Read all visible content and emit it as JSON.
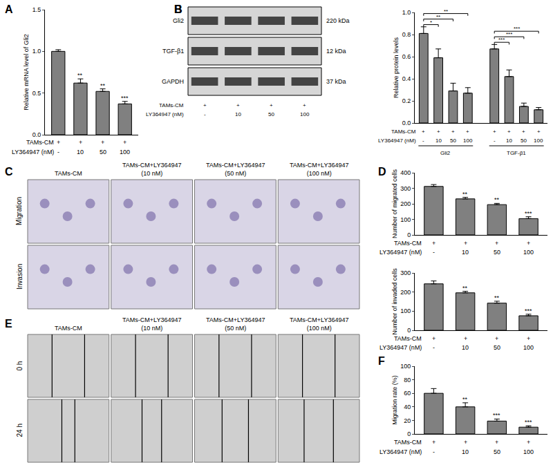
{
  "chart_data": [
    {
      "panel": "A",
      "type": "bar",
      "y_label": "Relative mRNA level of Gli2",
      "color": "#808080",
      "values": [
        1.0,
        0.62,
        0.52,
        0.37
      ],
      "errors": [
        0.02,
        0.05,
        0.03,
        0.03
      ],
      "significance": [
        null,
        "**",
        "**",
        "***"
      ],
      "conditions": [
        {
          "label": "TAMs-CM",
          "values": [
            "+",
            "+",
            "+",
            "+"
          ]
        },
        {
          "label": "LY364947 (nM)",
          "values": [
            "-",
            "10",
            "50",
            "100"
          ]
        }
      ],
      "ylim": [
        0,
        1.5
      ],
      "yticks": [
        {
          "value": 0,
          "label": "0.0"
        },
        0.5,
        {
          "value": 1,
          "label": "1.0"
        },
        1.5
      ]
    },
    {
      "panel": "B",
      "type": "bar",
      "y_label": "Relative protein levels",
      "color": "#808080",
      "groups": [
        {
          "name": "Gli2",
          "values": [
            0.81,
            0.59,
            0.29,
            0.27
          ],
          "errors": [
            0.06,
            0.08,
            0.07,
            0.05
          ],
          "significance": [
            null,
            "*",
            "**",
            "**"
          ]
        },
        {
          "name": "TGF-β1",
          "values": [
            0.67,
            0.42,
            0.15,
            0.12
          ],
          "errors": [
            0.04,
            0.06,
            0.03,
            0.02
          ],
          "significance": [
            null,
            "***",
            "***",
            "***"
          ]
        }
      ],
      "conditions": [
        {
          "label": "TAMs-CM",
          "values": [
            "+",
            "+",
            "+",
            "+"
          ]
        },
        {
          "label": "LY364947 (nM)",
          "values": [
            "-",
            "10",
            "50",
            "100"
          ]
        }
      ],
      "ylim": [
        0,
        1.0
      ],
      "yticks": [
        {
          "value": 0,
          "label": "0.0"
        },
        0.2,
        0.4,
        0.6,
        0.8,
        {
          "value": 1,
          "label": "1.0"
        }
      ]
    },
    {
      "panel": "D",
      "type": "bar",
      "y_label": "Number of migrated cells",
      "color": "#808080",
      "values": [
        312,
        232,
        195,
        105
      ],
      "errors": [
        12,
        10,
        8,
        12
      ],
      "significance": [
        null,
        "**",
        "**",
        "***"
      ],
      "conditions": [
        {
          "label": "TAMs-CM",
          "values": [
            "+",
            "+",
            "+",
            "+"
          ]
        },
        {
          "label": "LY364947 (nM)",
          "values": [
            "-",
            "10",
            "50",
            "100"
          ]
        }
      ],
      "ylim": [
        0,
        400
      ],
      "yticks": [
        0,
        100,
        200,
        300,
        400
      ]
    },
    {
      "type": "bar",
      "y_label": "Number of invaded cells",
      "color": "#808080",
      "values": [
        243,
        196,
        142,
        76
      ],
      "errors": [
        15,
        8,
        10,
        8
      ],
      "significance": [
        null,
        "**",
        "**",
        "***"
      ],
      "conditions": [
        {
          "label": "TAMs-CM",
          "values": [
            "+",
            "+",
            "+",
            "+"
          ]
        },
        {
          "label": "LY364947 (nM)",
          "values": [
            "-",
            "10",
            "50",
            "100"
          ]
        }
      ],
      "ylim": [
        0,
        300
      ],
      "yticks": [
        0,
        100,
        200,
        300
      ]
    },
    {
      "panel": "F",
      "type": "bar",
      "y_label": "Migration rate (%)",
      "color": "#808080",
      "values": [
        60,
        40,
        19,
        10
      ],
      "errors": [
        7,
        6,
        3,
        2
      ],
      "significance": [
        null,
        "**",
        "***",
        "***"
      ],
      "conditions": [
        {
          "label": "TAMs-CM",
          "values": [
            "+",
            "+",
            "+",
            "+"
          ]
        },
        {
          "label": "LY364947 (nM)",
          "values": [
            "-",
            "10",
            "50",
            "100"
          ]
        }
      ],
      "ylim": [
        0,
        100
      ],
      "yticks": [
        0,
        20,
        40,
        60,
        80,
        100
      ]
    }
  ],
  "blot": {
    "panel": "B",
    "rows": [
      {
        "name": "Gli2",
        "size": "220 kDa"
      },
      {
        "name": "TGF-β1",
        "size": "12 kDa"
      },
      {
        "name": "GAPDH",
        "size": "37 kDa"
      }
    ],
    "conditions": [
      {
        "label": "TAMs-CM",
        "values": [
          "+",
          "+",
          "+",
          "+"
        ]
      },
      {
        "label": "LY364947 (nM)",
        "values": [
          "-",
          "10",
          "50",
          "100"
        ]
      }
    ]
  },
  "image_panels": [
    {
      "panel": "C",
      "columns": [
        [
          "TAMs-CM"
        ],
        [
          "TAMs-CM+LY364947",
          "(10 nM)"
        ],
        [
          "TAMs-CM+LY364947",
          "(50 nM)"
        ],
        [
          "TAMs-CM+LY364947",
          "(100 nM)"
        ]
      ],
      "rows": [
        "Migration",
        "Invasion"
      ]
    },
    {
      "panel": "E",
      "columns": [
        [
          "TAMs-CM"
        ],
        [
          "TAMs-CM+LY364947",
          "(10 nM)"
        ],
        [
          "TAMs-CM+LY364947",
          "(50 nM)"
        ],
        [
          "TAMs-CM+LY364947",
          "(100 nM)"
        ]
      ],
      "rows": [
        "0 h",
        "24 h"
      ]
    }
  ]
}
